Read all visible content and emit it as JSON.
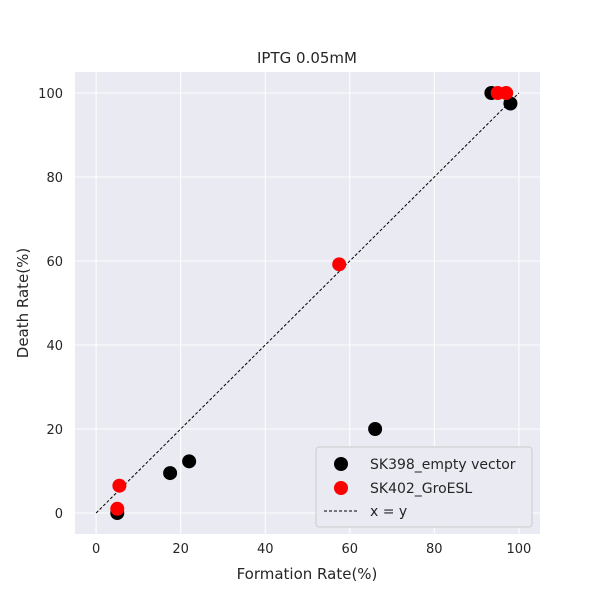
{
  "chart_data": {
    "type": "scatter",
    "title": "IPTG 0.05mM",
    "xlabel": "Formation Rate(%)",
    "ylabel": "Death Rate(%)",
    "xlim": [
      -5,
      105
    ],
    "ylim": [
      -5,
      105
    ],
    "xticks": [
      0,
      20,
      40,
      60,
      80,
      100
    ],
    "yticks": [
      0,
      20,
      40,
      60,
      80,
      100
    ],
    "grid": true,
    "legend_position": "lower-right",
    "colors": {
      "background": "#eaeaf2",
      "grid": "#ffffff",
      "series_1": "#000000",
      "series_2": "#ff0000",
      "reference_line": "#000000"
    },
    "series": [
      {
        "name": "SK398_empty vector",
        "color": "#000000",
        "points": [
          {
            "x": 5,
            "y": 0
          },
          {
            "x": 17.5,
            "y": 9.5
          },
          {
            "x": 22,
            "y": 12.3
          },
          {
            "x": 66,
            "y": 20
          },
          {
            "x": 93.5,
            "y": 100
          },
          {
            "x": 98,
            "y": 97.5
          }
        ]
      },
      {
        "name": "SK402_GroESL",
        "color": "#ff0000",
        "points": [
          {
            "x": 5,
            "y": 1
          },
          {
            "x": 5.5,
            "y": 6.5
          },
          {
            "x": 57.5,
            "y": 59.2
          },
          {
            "x": 95,
            "y": 100
          },
          {
            "x": 97,
            "y": 100
          }
        ]
      }
    ],
    "reference_line": {
      "name": "x = y",
      "from": [
        0,
        0
      ],
      "to": [
        100,
        100
      ],
      "style": "dashed"
    }
  }
}
